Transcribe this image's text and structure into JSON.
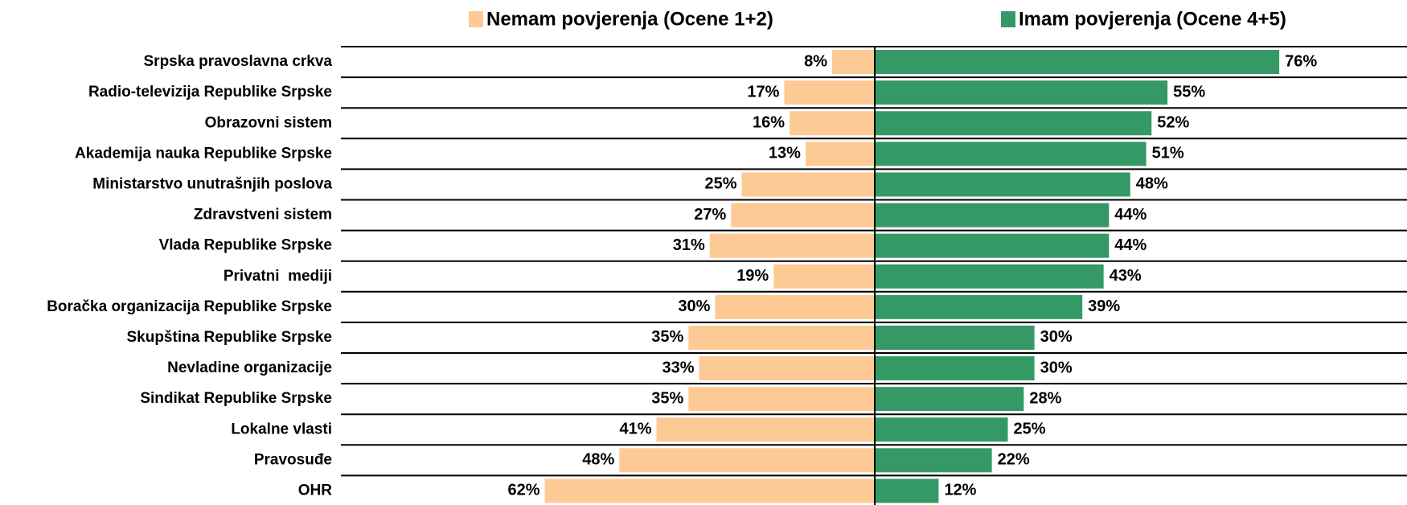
{
  "chart_data": {
    "type": "diverging-bar",
    "categories": [
      "Srpska pravoslavna crkva",
      "Radio-televizija Republike Srpske",
      "Obrazovni sistem",
      "Akademija nauka Republike Srpske",
      "Ministarstvo unutrašnjih poslova",
      "Zdravstveni sistem",
      "Vlada Republike Srpske",
      "Privatni  mediji",
      "Boračka organizacija Republike Srpske",
      "Skupština Republike Srpske",
      "Nevladine organizacije",
      "Sindikat Republike Srpske",
      "Lokalne vlasti",
      "Pravosuđe",
      "OHR"
    ],
    "series": [
      {
        "name": "Nemam povjerenja (Ocene 1+2)",
        "color": "#fdca96",
        "side": "left",
        "values": [
          8,
          17,
          16,
          13,
          25,
          27,
          31,
          19,
          30,
          35,
          33,
          35,
          41,
          48,
          62
        ],
        "value_labels": [
          "8%",
          "17%",
          "16%",
          "13%",
          "25%",
          "27%",
          "31%",
          "19%",
          "30%",
          "35%",
          "33%",
          "35%",
          "41%",
          "48%",
          "62%"
        ]
      },
      {
        "name": "Imam povjerenja (Ocene 4+5)",
        "color": "#359966",
        "side": "right",
        "values": [
          76,
          55,
          52,
          51,
          48,
          44,
          44,
          43,
          39,
          30,
          30,
          28,
          25,
          22,
          12
        ],
        "value_labels": [
          "76%",
          "55%",
          "52%",
          "51%",
          "48%",
          "44%",
          "44%",
          "43%",
          "39%",
          "30%",
          "30%",
          "28%",
          "25%",
          "22%",
          "12%"
        ]
      }
    ],
    "xlim": [
      0,
      100
    ]
  }
}
